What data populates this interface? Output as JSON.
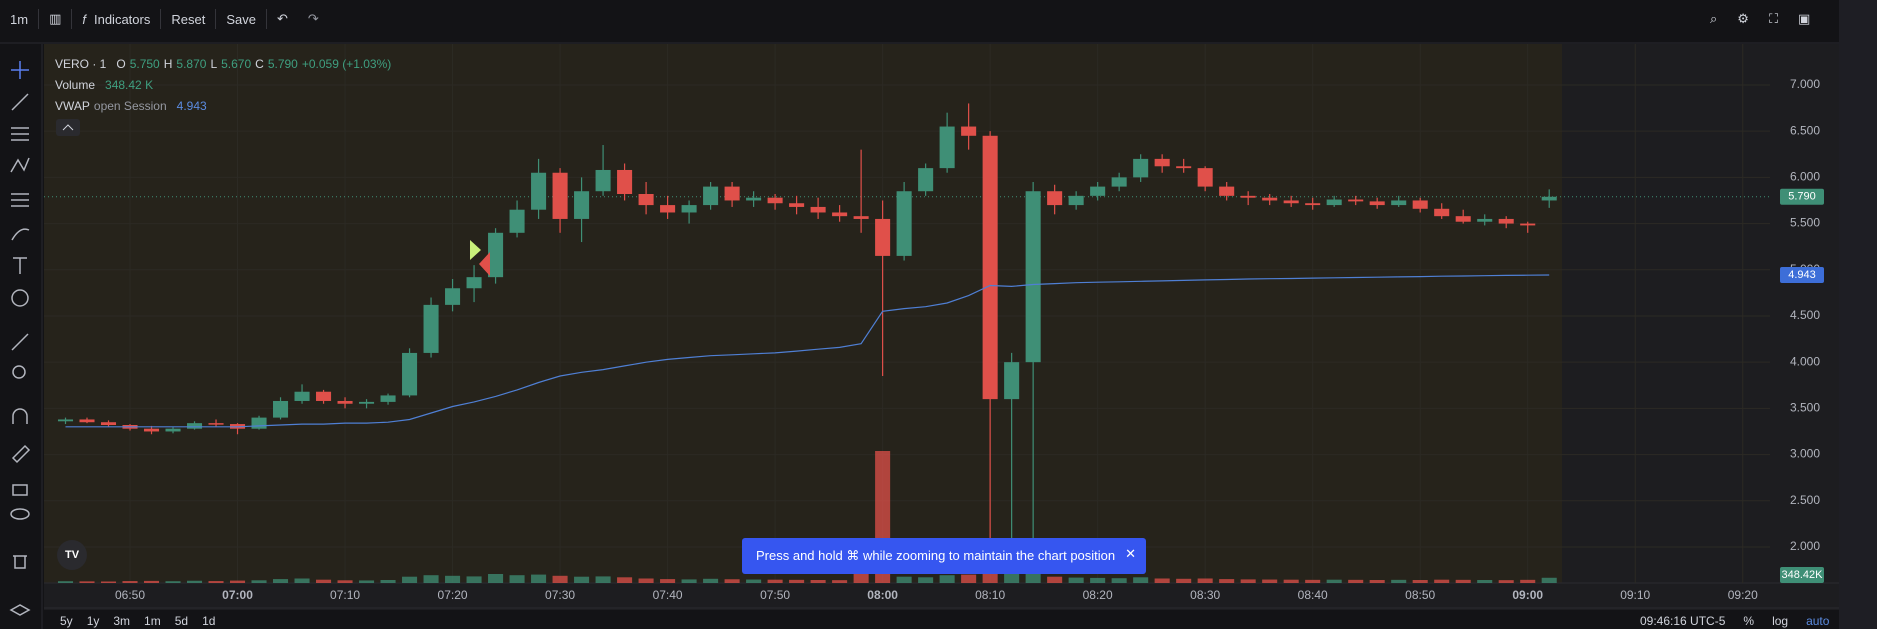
{
  "toolbar": {
    "interval": "1m",
    "indicators": "Indicators",
    "reset": "Reset",
    "save": "Save"
  },
  "legend": {
    "symbol": "VERO · 1",
    "o_label": "O",
    "open": "5.750",
    "h_label": "H",
    "high": "5.870",
    "l_label": "L",
    "low": "5.670",
    "c_label": "C",
    "close": "5.790",
    "change": "+0.059 (+1.03%)",
    "volume": "348.42 K",
    "vwap_params": "open Session",
    "vwap": "4.943"
  },
  "chart_data": {
    "type": "candlestick",
    "x": [
      "06:44",
      "06:46",
      "06:48",
      "06:50",
      "06:52",
      "06:54",
      "06:56",
      "06:58",
      "07:00",
      "07:02",
      "07:04",
      "07:06",
      "07:08",
      "07:10",
      "07:12",
      "07:14",
      "07:16",
      "07:18",
      "07:20",
      "07:22",
      "07:24",
      "07:26",
      "07:28",
      "07:30",
      "07:32",
      "07:34",
      "07:36",
      "07:38",
      "07:40",
      "07:42",
      "07:44",
      "07:46",
      "07:48",
      "07:50",
      "07:52",
      "07:54",
      "07:56",
      "07:58",
      "08:00",
      "08:02",
      "08:04",
      "08:06",
      "08:08",
      "08:10",
      "08:12",
      "08:14",
      "08:16",
      "08:18",
      "08:20",
      "08:22",
      "08:24",
      "08:26",
      "08:28",
      "08:30",
      "08:32",
      "08:34",
      "08:36",
      "08:38",
      "08:40",
      "08:42",
      "08:44",
      "08:46",
      "08:48",
      "08:50",
      "08:52",
      "08:54",
      "08:56",
      "08:58",
      "09:00",
      "09:02"
    ],
    "open": [
      3.36,
      3.38,
      3.35,
      3.32,
      3.28,
      3.25,
      3.28,
      3.34,
      3.33,
      3.28,
      3.4,
      3.58,
      3.68,
      3.58,
      3.55,
      3.57,
      3.64,
      4.1,
      4.62,
      4.8,
      4.92,
      5.4,
      5.65,
      6.05,
      5.55,
      5.85,
      6.08,
      5.82,
      5.7,
      5.62,
      5.7,
      5.9,
      5.75,
      5.78,
      5.72,
      5.68,
      5.62,
      5.58,
      5.55,
      5.15,
      5.85,
      6.1,
      6.55,
      6.45,
      3.6,
      4.0,
      5.85,
      5.7,
      5.8,
      5.9,
      6.0,
      6.2,
      6.12,
      6.1,
      5.9,
      5.8,
      5.78,
      5.75,
      5.72,
      5.7,
      5.76,
      5.74,
      5.7,
      5.75,
      5.66,
      5.58,
      5.52,
      5.55,
      5.5,
      5.75
    ],
    "high": [
      3.4,
      3.4,
      3.37,
      3.33,
      3.31,
      3.3,
      3.36,
      3.38,
      3.34,
      3.42,
      3.62,
      3.76,
      3.7,
      3.62,
      3.6,
      3.66,
      4.15,
      4.7,
      4.9,
      5.05,
      5.45,
      5.75,
      6.2,
      6.1,
      6.0,
      6.35,
      6.15,
      5.95,
      5.8,
      5.75,
      5.95,
      5.95,
      5.85,
      5.82,
      5.8,
      5.78,
      5.7,
      6.3,
      5.75,
      5.95,
      6.15,
      6.7,
      6.8,
      6.5,
      4.1,
      5.95,
      5.92,
      5.85,
      5.95,
      6.05,
      6.25,
      6.25,
      6.2,
      6.12,
      5.95,
      5.85,
      5.82,
      5.8,
      5.78,
      5.8,
      5.8,
      5.78,
      5.8,
      5.78,
      5.72,
      5.65,
      5.6,
      5.58,
      5.52,
      5.87
    ],
    "low": [
      3.33,
      3.34,
      3.3,
      3.26,
      3.22,
      3.23,
      3.27,
      3.3,
      3.22,
      3.27,
      3.38,
      3.55,
      3.55,
      3.5,
      3.5,
      3.54,
      3.62,
      4.05,
      4.55,
      4.65,
      4.85,
      5.35,
      5.55,
      5.4,
      5.3,
      5.8,
      5.75,
      5.6,
      5.55,
      5.5,
      5.65,
      5.68,
      5.68,
      5.65,
      5.6,
      5.55,
      5.52,
      5.4,
      3.85,
      5.1,
      5.8,
      6.05,
      6.3,
      2.0,
      1.95,
      1.95,
      5.6,
      5.65,
      5.75,
      5.85,
      5.95,
      6.05,
      6.05,
      5.85,
      5.75,
      5.7,
      5.7,
      5.68,
      5.65,
      5.68,
      5.7,
      5.66,
      5.68,
      5.62,
      5.55,
      5.5,
      5.48,
      5.45,
      5.4,
      5.67
    ],
    "close": [
      3.38,
      3.35,
      3.32,
      3.28,
      3.25,
      3.28,
      3.34,
      3.33,
      3.28,
      3.4,
      3.58,
      3.68,
      3.58,
      3.55,
      3.57,
      3.64,
      4.1,
      4.62,
      4.8,
      4.92,
      5.4,
      5.65,
      6.05,
      5.55,
      5.85,
      6.08,
      5.82,
      5.7,
      5.62,
      5.7,
      5.9,
      5.75,
      5.78,
      5.72,
      5.68,
      5.62,
      5.58,
      5.55,
      5.15,
      5.85,
      6.1,
      6.55,
      6.45,
      3.6,
      4.0,
      5.85,
      5.7,
      5.8,
      5.9,
      6.0,
      6.2,
      6.12,
      6.1,
      5.9,
      5.8,
      5.78,
      5.75,
      5.72,
      5.7,
      5.76,
      5.74,
      5.7,
      5.75,
      5.66,
      5.58,
      5.52,
      5.55,
      5.5,
      5.48,
      5.79
    ],
    "volume": {
      "name": "Volume",
      "values": [
        120,
        110,
        100,
        130,
        140,
        120,
        150,
        130,
        160,
        180,
        260,
        300,
        220,
        180,
        170,
        200,
        420,
        520,
        480,
        440,
        600,
        520,
        560,
        480,
        420,
        440,
        380,
        300,
        260,
        240,
        280,
        250,
        230,
        220,
        210,
        200,
        190,
        600,
        8800,
        420,
        380,
        520,
        560,
        2600,
        1900,
        1700,
        420,
        360,
        340,
        320,
        380,
        300,
        280,
        300,
        260,
        240,
        230,
        220,
        210,
        220,
        210,
        200,
        210,
        200,
        220,
        210,
        200,
        190,
        210,
        348.42
      ]
    },
    "series": [
      {
        "name": "VWAP",
        "color": "#4f7fd4",
        "values": [
          3.3,
          3.3,
          3.3,
          3.3,
          3.3,
          3.3,
          3.3,
          3.3,
          3.3,
          3.31,
          3.32,
          3.33,
          3.33,
          3.34,
          3.34,
          3.35,
          3.38,
          3.45,
          3.52,
          3.57,
          3.63,
          3.7,
          3.78,
          3.85,
          3.89,
          3.92,
          3.96,
          4.0,
          4.03,
          4.05,
          4.07,
          4.08,
          4.09,
          4.1,
          4.12,
          4.14,
          4.16,
          4.2,
          4.55,
          4.58,
          4.6,
          4.64,
          4.72,
          4.83,
          4.82,
          4.84,
          4.85,
          4.86,
          4.865,
          4.87,
          4.875,
          4.88,
          4.885,
          4.89,
          4.895,
          4.9,
          4.903,
          4.906,
          4.91,
          4.913,
          4.916,
          4.92,
          4.923,
          4.926,
          4.93,
          4.933,
          4.936,
          4.939,
          4.941,
          4.943
        ]
      }
    ],
    "up_color": "#3f8f76",
    "down_color": "#e0504a",
    "xlim": [
      "06:42",
      "09:23"
    ],
    "xticks": [
      "06:50",
      "07:00",
      "07:10",
      "07:20",
      "07:30",
      "07:40",
      "07:50",
      "08:00",
      "08:10",
      "08:20",
      "08:30",
      "08:40",
      "08:50",
      "09:00",
      "09:10",
      "09:20"
    ],
    "ylim": [
      1.61,
      7.465
    ],
    "yticks": [
      {
        "value": 2,
        "label": "2.000"
      },
      {
        "value": 2.5,
        "label": "2.500"
      },
      {
        "value": 3,
        "label": "3.000"
      },
      {
        "value": 3.5,
        "label": "3.500"
      },
      {
        "value": 4,
        "label": "4.000"
      },
      {
        "value": 4.5,
        "label": "4.500"
      },
      {
        "value": 5,
        "label": "5.000"
      },
      {
        "value": 5.5,
        "label": "5.500"
      },
      {
        "value": 6,
        "label": "6.000"
      },
      {
        "value": 6.5,
        "label": "6.500"
      },
      {
        "value": 7,
        "label": "7.000"
      }
    ],
    "grid": true,
    "price_labels": {
      "close": "5.790",
      "vwap": "4.943",
      "volume": "348.42K"
    }
  },
  "toast": "Press and hold ⌘ while zooming to maintain the chart position",
  "bottom_bar": {
    "ranges": [
      "5y",
      "1y",
      "3m",
      "1m",
      "5d",
      "1d"
    ],
    "clock": "09:46:16 UTC-5",
    "options": [
      "%",
      "log",
      "auto"
    ]
  }
}
